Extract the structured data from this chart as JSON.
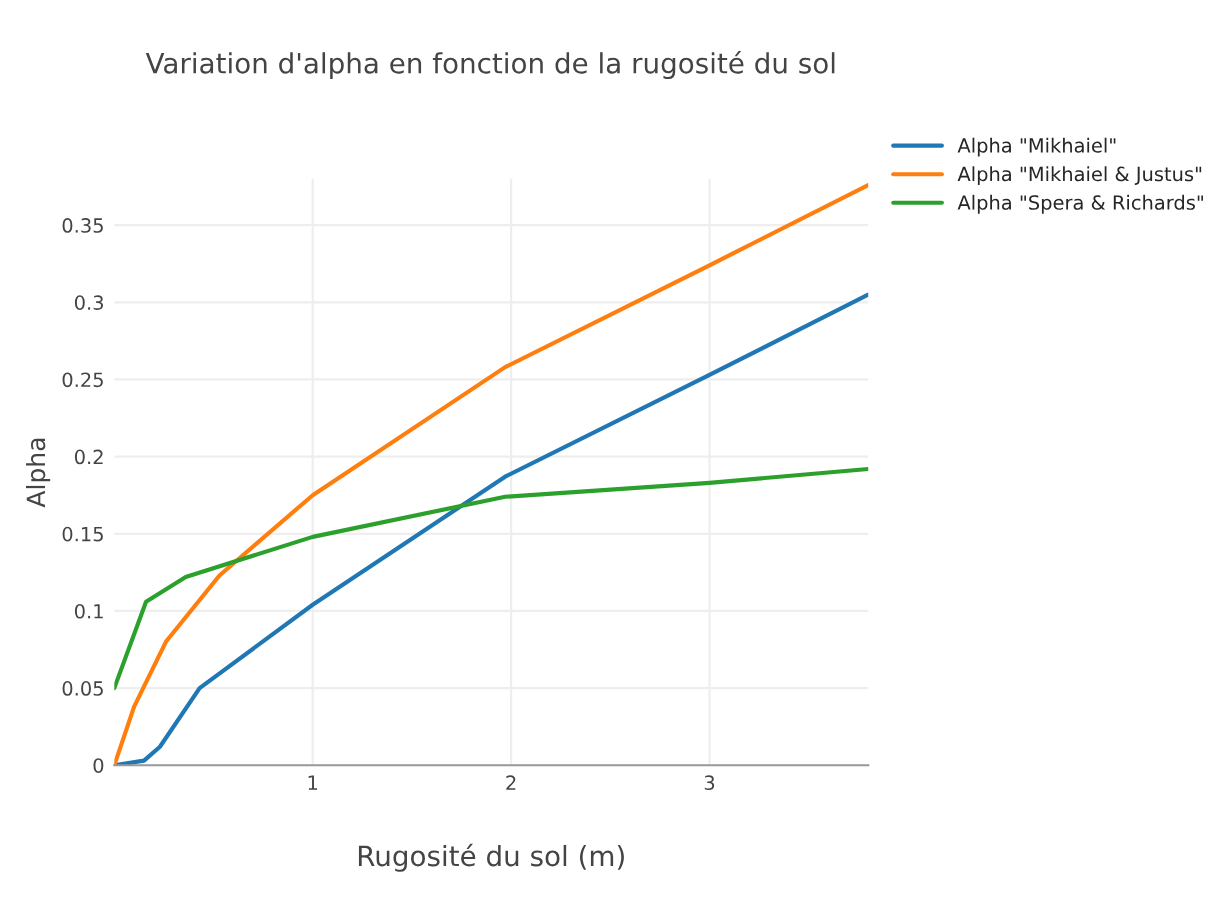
{
  "chart_data": {
    "type": "line",
    "title": "Variation d'alpha en fonction de la rugosité du sol",
    "xlabel": "Rugosité du sol (m)",
    "ylabel": "Alpha",
    "xlim": [
      0,
      3.8
    ],
    "xticks": [
      1,
      2,
      3
    ],
    "ylim": [
      0,
      0.38
    ],
    "yticks": [
      0,
      0.05,
      0.1,
      0.15,
      0.2,
      0.25,
      0.3,
      0.35
    ],
    "grid": true,
    "legend": "top right",
    "marker": "none",
    "line_style": "solid",
    "series": [
      {
        "name": "Alpha \"Mikhaiel\"",
        "color": "#1f77b4",
        "x": [
          0,
          0.15,
          0.23,
          0.43,
          1.0,
          1.97,
          3.0,
          3.8
        ],
        "values": [
          0,
          0.003,
          0.012,
          0.05,
          0.104,
          0.187,
          0.253,
          0.305
        ]
      },
      {
        "name": "Alpha \"Mikhaiel & Justus\"",
        "color": "#ff7f0e",
        "x": [
          0,
          0.1,
          0.26,
          0.53,
          1.0,
          1.97,
          3.0,
          3.8
        ],
        "values": [
          0,
          0.038,
          0.08,
          0.123,
          0.175,
          0.258,
          0.324,
          0.376
        ]
      },
      {
        "name": "Alpha \"Spera & Richards\"",
        "color": "#2ca02c",
        "x": [
          0,
          0.16,
          0.36,
          1.0,
          1.97,
          3.0,
          3.8
        ],
        "values": [
          0.05,
          0.106,
          0.122,
          0.148,
          0.174,
          0.183,
          0.192
        ]
      }
    ]
  }
}
